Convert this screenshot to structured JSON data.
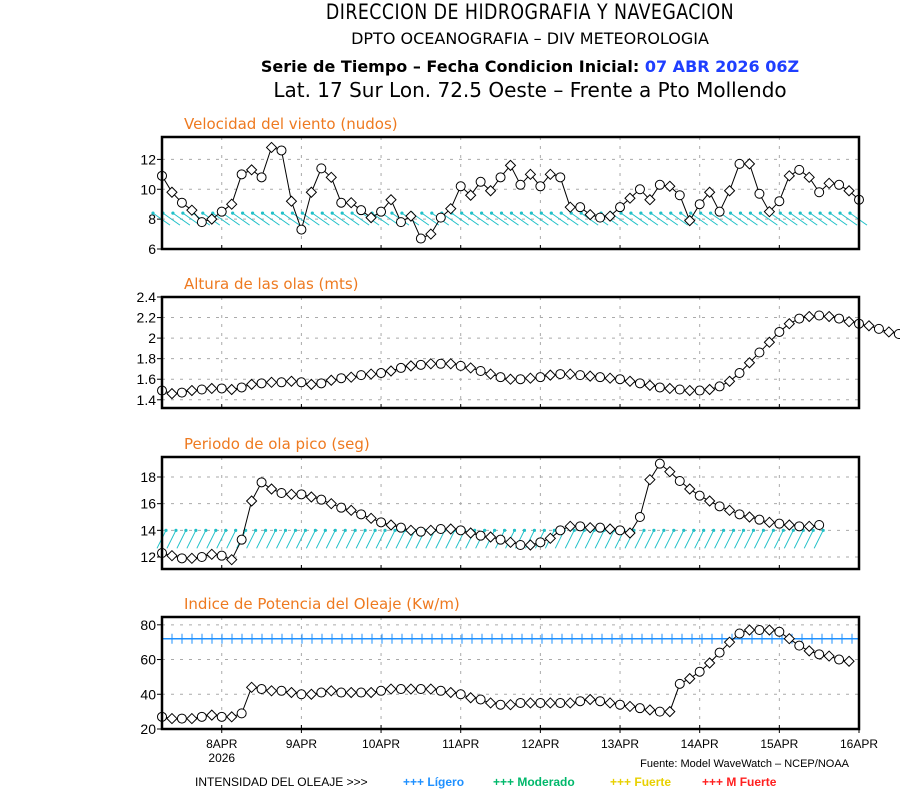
{
  "header": {
    "title": "DIRECCION DE HIDROGRAFIA Y NAVEGACION",
    "subtitle": "DPTO OCEANOGRAFIA – DIV METEOROLOGIA",
    "series_label": "Serie de Tiempo – Fecha Condicion Inicial:",
    "init_date": "07 ABR 2026 06Z",
    "location": "Lat. 17 Sur  Lon. 72.5 Oeste – Frente a Pto Mollendo"
  },
  "footer": {
    "source": "Fuente: Model WaveWatch – NCEP/NOAA",
    "legend_label": "INTENSIDAD DEL OLEAJE >>>",
    "legend_items": [
      {
        "marker": "+++",
        "label": "Lígero",
        "color": "#1e90ff"
      },
      {
        "marker": "+++",
        "label": "Moderado",
        "color": "#00b86b"
      },
      {
        "marker": "+++",
        "label": "Fuerte",
        "color": "#e8d000"
      },
      {
        "marker": "+++",
        "label": "M Fuerte",
        "color": "#ff2020"
      }
    ]
  },
  "colors": {
    "title": "#ee7a20",
    "arrows": "#20c0c8",
    "threshold": "#1e90ff",
    "line": "#000000",
    "grid": "#aaaaaa"
  },
  "chart_data": [
    {
      "type": "line",
      "title": "Velocidad del viento (nudos)",
      "xlabel": "",
      "ylabel": "",
      "x_start": "2026-04-07T06Z",
      "x_step_hours": 3,
      "x_ticks": [
        "8APR",
        "9APR",
        "10APR",
        "11APR",
        "12APR",
        "13APR",
        "14APR",
        "15APR",
        "16APR"
      ],
      "x_year": "2026",
      "yticks": [
        6,
        8,
        10,
        12
      ],
      "ylim": [
        6,
        13.5
      ],
      "grid": true,
      "direction_arrows": {
        "level": 8,
        "style": "pointing-upper-left"
      },
      "values": [
        10.9,
        9.8,
        9.1,
        8.6,
        7.8,
        8.0,
        8.5,
        9.0,
        11.0,
        11.3,
        10.8,
        12.8,
        12.6,
        9.2,
        7.3,
        9.8,
        11.4,
        10.8,
        9.1,
        9.1,
        8.6,
        8.1,
        8.5,
        9.3,
        7.8,
        8.2,
        6.7,
        7.0,
        8.1,
        8.7,
        10.2,
        9.6,
        10.5,
        9.9,
        10.8,
        11.6,
        10.3,
        11.0,
        10.2,
        11.0,
        10.8,
        8.8,
        8.8,
        8.3,
        8.1,
        8.2,
        8.8,
        9.4,
        10.0,
        9.3,
        10.3,
        10.2,
        9.6,
        7.9,
        9.0,
        9.8,
        8.5,
        9.9,
        11.7,
        11.7,
        9.7,
        8.5,
        9.2,
        10.9,
        11.3,
        10.8,
        9.8,
        10.4,
        10.3,
        9.9,
        9.3
      ]
    },
    {
      "type": "line",
      "title": "Altura de las olas (mts)",
      "xlabel": "",
      "ylabel": "",
      "x_start": "2026-04-07T06Z",
      "x_step_hours": 3,
      "yticks": [
        1.4,
        1.6,
        1.8,
        2.0,
        2.2,
        2.4
      ],
      "ylim": [
        1.32,
        2.4
      ],
      "grid": true,
      "values": [
        1.49,
        1.46,
        1.47,
        1.49,
        1.5,
        1.51,
        1.51,
        1.5,
        1.52,
        1.55,
        1.56,
        1.57,
        1.57,
        1.58,
        1.57,
        1.55,
        1.56,
        1.59,
        1.61,
        1.62,
        1.64,
        1.65,
        1.66,
        1.68,
        1.71,
        1.73,
        1.74,
        1.75,
        1.75,
        1.75,
        1.73,
        1.71,
        1.68,
        1.65,
        1.62,
        1.6,
        1.6,
        1.61,
        1.62,
        1.64,
        1.65,
        1.65,
        1.64,
        1.63,
        1.62,
        1.61,
        1.6,
        1.58,
        1.56,
        1.54,
        1.52,
        1.51,
        1.5,
        1.49,
        1.49,
        1.5,
        1.53,
        1.58,
        1.66,
        1.76,
        1.86,
        1.96,
        2.06,
        2.14,
        2.19,
        2.21,
        2.22,
        2.21,
        2.19,
        2.16,
        2.14,
        2.12,
        2.09,
        2.06,
        2.04
      ]
    },
    {
      "type": "line",
      "title": "Periodo de ola pico (seg)",
      "xlabel": "",
      "ylabel": "",
      "x_start": "2026-04-07T06Z",
      "x_step_hours": 3,
      "yticks": [
        12,
        14,
        16,
        18
      ],
      "ylim": [
        11.1,
        19.5
      ],
      "grid": true,
      "direction_arrows": {
        "level": 13.4,
        "style": "pointing-upper-right"
      },
      "values": [
        12.3,
        12.1,
        11.9,
        11.9,
        12.0,
        12.2,
        12.1,
        11.8,
        13.3,
        16.2,
        17.6,
        17.1,
        16.8,
        16.7,
        16.7,
        16.5,
        16.3,
        16.0,
        15.7,
        15.5,
        15.2,
        14.9,
        14.6,
        14.4,
        14.2,
        14.0,
        13.9,
        14.0,
        14.1,
        14.1,
        14.0,
        13.8,
        13.6,
        13.5,
        13.3,
        13.1,
        12.9,
        12.9,
        13.1,
        13.4,
        14.0,
        14.3,
        14.3,
        14.2,
        14.2,
        14.1,
        14.0,
        13.8,
        15.0,
        17.8,
        19.0,
        18.4,
        17.7,
        17.1,
        16.6,
        16.2,
        15.8,
        15.5,
        15.2,
        15.0,
        14.8,
        14.6,
        14.5,
        14.4,
        14.3,
        14.3,
        14.4
      ]
    },
    {
      "type": "line",
      "title": "Indice de Potencia del Oleaje (Kw/m)",
      "xlabel": "",
      "ylabel": "",
      "x_start": "2026-04-07T06Z",
      "x_step_hours": 3,
      "yticks": [
        20,
        40,
        60,
        80
      ],
      "ylim": [
        20,
        84.5
      ],
      "grid": true,
      "threshold_line": {
        "value": 72,
        "label": "Lígero",
        "color": "#1e90ff"
      },
      "values": [
        27,
        26,
        26,
        26,
        27,
        28,
        27,
        27,
        29,
        44,
        43,
        42,
        42,
        41,
        40,
        40,
        41,
        42,
        41,
        41,
        41,
        41,
        42,
        43,
        43,
        43,
        43,
        43,
        42,
        41,
        40,
        38,
        37,
        35,
        34,
        34,
        35,
        35,
        35,
        35,
        35,
        35,
        36,
        37,
        36,
        35,
        34,
        33,
        32,
        31,
        30,
        30,
        46,
        49,
        53,
        58,
        64,
        70,
        75,
        77,
        77,
        77,
        76,
        72,
        68,
        65,
        63,
        62,
        60,
        59
      ]
    }
  ]
}
